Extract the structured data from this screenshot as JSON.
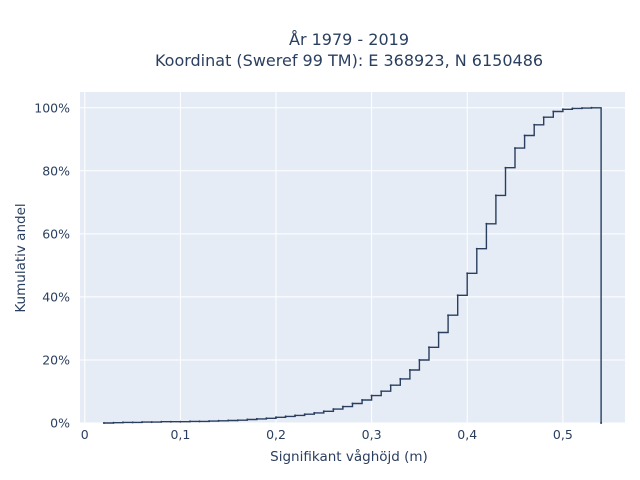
{
  "chart_data": {
    "type": "line",
    "subtype": "step-ecdf",
    "title_lines": [
      "År 1979 - 2019",
      "Koordinat (Sweref 99 TM): E 368923, N 6150486"
    ],
    "xlabel": "Signifikant våghöjd (m)",
    "ylabel": "Kumulativ andel",
    "xlim": [
      -0.005,
      0.565
    ],
    "ylim": [
      0,
      1.05
    ],
    "x_ticks": [
      {
        "value": 0,
        "label": "0"
      },
      {
        "value": 0.1,
        "label": "0,1"
      },
      {
        "value": 0.2,
        "label": "0,2"
      },
      {
        "value": 0.3,
        "label": "0,3"
      },
      {
        "value": 0.4,
        "label": "0,4"
      },
      {
        "value": 0.5,
        "label": "0,5"
      }
    ],
    "y_ticks": [
      {
        "value": 0,
        "label": "0%"
      },
      {
        "value": 0.2,
        "label": "20%"
      },
      {
        "value": 0.4,
        "label": "40%"
      },
      {
        "value": 0.6,
        "label": "60%"
      },
      {
        "value": 0.8,
        "label": "80%"
      },
      {
        "value": 1.0,
        "label": "100%"
      }
    ],
    "grid": true,
    "background": "#e5ecf6",
    "line_color": "#2a3f5f",
    "x": [
      0.02,
      0.03,
      0.04,
      0.05,
      0.06,
      0.07,
      0.08,
      0.09,
      0.1,
      0.11,
      0.12,
      0.13,
      0.14,
      0.15,
      0.16,
      0.17,
      0.18,
      0.19,
      0.2,
      0.21,
      0.22,
      0.23,
      0.24,
      0.25,
      0.26,
      0.27,
      0.28,
      0.29,
      0.3,
      0.31,
      0.32,
      0.33,
      0.34,
      0.35,
      0.36,
      0.37,
      0.38,
      0.39,
      0.4,
      0.41,
      0.42,
      0.43,
      0.44,
      0.45,
      0.46,
      0.47,
      0.48,
      0.49,
      0.5,
      0.51,
      0.52,
      0.53,
      0.54
    ],
    "y": [
      0,
      0.001,
      0.002,
      0.002,
      0.003,
      0.003,
      0.004,
      0.004,
      0.004,
      0.005,
      0.005,
      0.006,
      0.007,
      0.008,
      0.009,
      0.011,
      0.013,
      0.015,
      0.018,
      0.021,
      0.024,
      0.028,
      0.032,
      0.037,
      0.044,
      0.052,
      0.062,
      0.073,
      0.087,
      0.101,
      0.12,
      0.14,
      0.168,
      0.2,
      0.24,
      0.287,
      0.342,
      0.405,
      0.475,
      0.553,
      0.632,
      0.722,
      0.81,
      0.872,
      0.912,
      0.946,
      0.97,
      0.988,
      0.995,
      0.998,
      0.999,
      1.0,
      0
    ]
  }
}
